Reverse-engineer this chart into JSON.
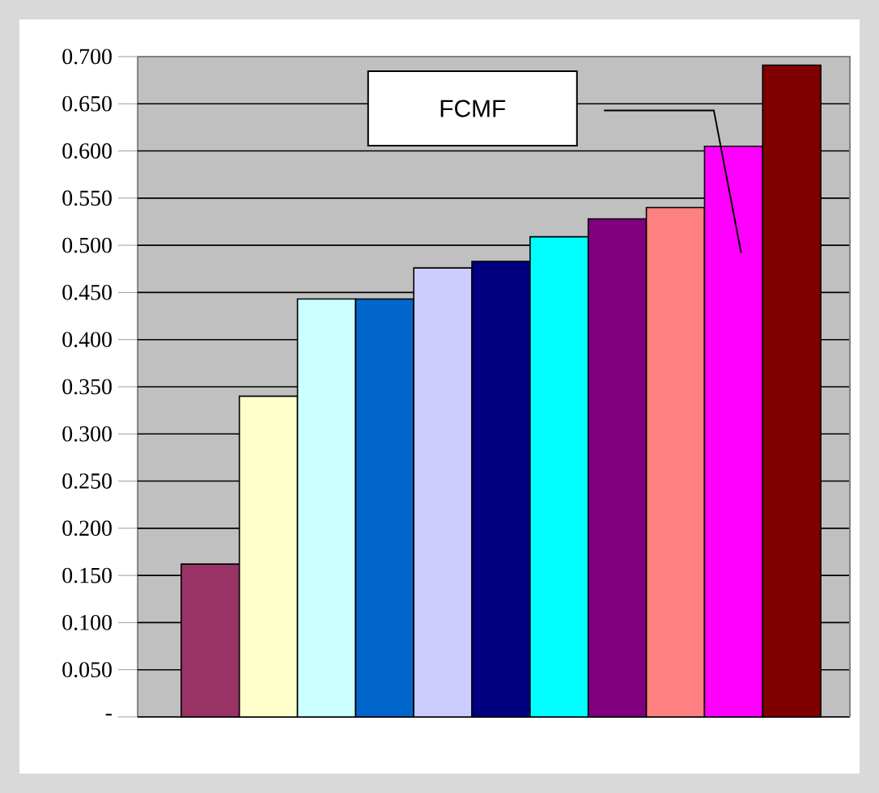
{
  "chart_data": {
    "type": "bar",
    "categories": [
      null,
      null,
      null,
      null,
      null,
      null,
      null,
      null,
      null,
      null,
      null
    ],
    "values": [
      0.162,
      0.34,
      0.443,
      0.443,
      0.476,
      0.483,
      0.509,
      0.528,
      0.54,
      0.605,
      0.691
    ],
    "colors": [
      "#993366",
      "#ffffcc",
      "#ccffff",
      "#0066cc",
      "#ccccff",
      "#000080",
      "#00ffff",
      "#800080",
      "#ff8080",
      "#ff00ff",
      "#800000"
    ],
    "ylim": [
      0,
      0.7
    ],
    "yticks": [
      {
        "value": 0,
        "label": "-"
      },
      {
        "value": 0.05,
        "label": "0.050"
      },
      {
        "value": 0.1,
        "label": "0.100"
      },
      {
        "value": 0.15,
        "label": "0.150"
      },
      {
        "value": 0.2,
        "label": "0.200"
      },
      {
        "value": 0.25,
        "label": "0.250"
      },
      {
        "value": 0.3,
        "label": "0.300"
      },
      {
        "value": 0.35,
        "label": "0.350"
      },
      {
        "value": 0.4,
        "label": "0.400"
      },
      {
        "value": 0.45,
        "label": "0.450"
      },
      {
        "value": 0.5,
        "label": "0.500"
      },
      {
        "value": 0.55,
        "label": "0.550"
      },
      {
        "value": 0.6,
        "label": "0.600"
      },
      {
        "value": 0.65,
        "label": "0.650"
      },
      {
        "value": 0.7,
        "label": "0.700"
      }
    ],
    "grid": "y",
    "annotations": [
      "FCMF"
    ]
  }
}
